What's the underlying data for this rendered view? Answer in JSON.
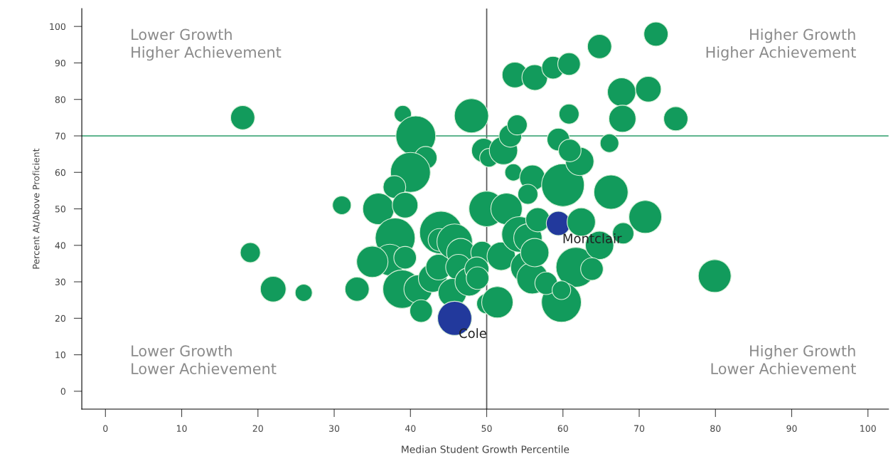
{
  "chart_data": {
    "type": "bubble",
    "xlabel": "Median Student Growth Percentile",
    "ylabel": "Percent At/Above Proficient",
    "x": [
      18,
      19,
      22,
      26,
      31,
      33,
      39,
      40.7,
      42,
      40,
      37.9,
      35.8,
      39.3,
      38,
      37.3,
      35,
      39.3,
      38.9,
      41,
      41.4,
      42.9,
      43.7,
      44,
      43.8,
      45.8,
      46.6,
      46.3,
      45.5,
      45.8,
      48,
      47.7,
      49.4,
      48.7,
      48.8,
      50,
      51.4,
      49.6,
      50.3,
      50,
      52.6,
      51.9,
      52.2,
      53.1,
      54,
      53.7,
      56.3,
      58.7,
      60.8,
      53.5,
      56,
      55.4,
      54.3,
      55.4,
      55.2,
      56,
      56.3,
      56.7,
      59.4,
      60,
      62.2,
      59.4,
      60.9,
      60.8,
      62.4,
      61.7,
      59.8,
      57.8,
      59.8,
      64.8,
      66.3,
      64.8,
      63.8,
      66.1,
      67.7,
      67.8,
      67.9,
      71.2,
      72.2,
      70.8,
      74.8,
      79.9
    ],
    "values": [
      75,
      38,
      28,
      27,
      51,
      28,
      76,
      70,
      64,
      60,
      56,
      50,
      51,
      42,
      36,
      35.5,
      36.6,
      28,
      28,
      22,
      31,
      34,
      43.5,
      41.5,
      41,
      38,
      34,
      27,
      20,
      75.5,
      30,
      38,
      33.5,
      31,
      24,
      24.4,
      66,
      64,
      50,
      50,
      37,
      66,
      70,
      73,
      86.7,
      86,
      88.7,
      89.7,
      60,
      58.5,
      54,
      43,
      42,
      34,
      31,
      38,
      47,
      46,
      56.5,
      63,
      69,
      66,
      76,
      46.4,
      34,
      24.4,
      29.6,
      27.7,
      94.5,
      54.6,
      40,
      33.5,
      68,
      82,
      74.7,
      43.3,
      82.8,
      97.9,
      47.8,
      74.7,
      31.6
    ],
    "sizes": [
      0.32,
      0.22,
      0.36,
      0.16,
      0.19,
      0.32,
      0.16,
      0.87,
      0.28,
      0.87,
      0.28,
      0.54,
      0.36,
      0.87,
      0.54,
      0.54,
      0.28,
      0.81,
      0.44,
      0.28,
      0.44,
      0.36,
      1,
      0.28,
      0.69,
      0.44,
      0.36,
      0.44,
      0.64,
      0.64,
      0.44,
      0.28,
      0.32,
      0.28,
      0.22,
      0.54,
      0.32,
      0.19,
      0.69,
      0.54,
      0.44,
      0.44,
      0.28,
      0.22,
      0.36,
      0.36,
      0.28,
      0.28,
      0.16,
      0.36,
      0.22,
      0.69,
      0.44,
      0.54,
      0.54,
      0.44,
      0.32,
      0.32,
      1,
      0.44,
      0.28,
      0.28,
      0.22,
      0.44,
      0.87,
      0.87,
      0.28,
      0.19,
      0.32,
      0.64,
      0.44,
      0.28,
      0.19,
      0.44,
      0.4,
      0.25,
      0.36,
      0.32,
      0.59,
      0.32,
      0.59
    ],
    "colors": [
      "#129b5c",
      "#129b5c",
      "#129b5c",
      "#129b5c",
      "#129b5c",
      "#129b5c",
      "#129b5c",
      "#129b5c",
      "#129b5c",
      "#129b5c",
      "#129b5c",
      "#129b5c",
      "#129b5c",
      "#129b5c",
      "#129b5c",
      "#129b5c",
      "#129b5c",
      "#129b5c",
      "#129b5c",
      "#129b5c",
      "#129b5c",
      "#129b5c",
      "#129b5c",
      "#129b5c",
      "#129b5c",
      "#129b5c",
      "#129b5c",
      "#129b5c",
      "#22399c",
      "#129b5c",
      "#129b5c",
      "#129b5c",
      "#129b5c",
      "#129b5c",
      "#129b5c",
      "#129b5c",
      "#129b5c",
      "#129b5c",
      "#129b5c",
      "#129b5c",
      "#129b5c",
      "#129b5c",
      "#129b5c",
      "#129b5c",
      "#129b5c",
      "#129b5c",
      "#129b5c",
      "#129b5c",
      "#129b5c",
      "#129b5c",
      "#129b5c",
      "#129b5c",
      "#129b5c",
      "#129b5c",
      "#129b5c",
      "#129b5c",
      "#129b5c",
      "#22399c",
      "#129b5c",
      "#129b5c",
      "#129b5c",
      "#129b5c",
      "#129b5c",
      "#129b5c",
      "#129b5c",
      "#129b5c",
      "#129b5c",
      "#129b5c",
      "#129b5c",
      "#129b5c",
      "#129b5c",
      "#129b5c",
      "#129b5c",
      "#129b5c",
      "#129b5c",
      "#129b5c",
      "#129b5c",
      "#129b5c",
      "#129b5c",
      "#129b5c",
      "#129b5c"
    ],
    "xlim": [
      -3.1,
      102.7
    ],
    "ylim": [
      -4.9,
      104.9
    ],
    "xticks": [
      0,
      10,
      20,
      30,
      40,
      50,
      60,
      70,
      80,
      90,
      100
    ],
    "yticks": [
      0,
      10,
      20,
      30,
      40,
      50,
      60,
      70,
      80,
      90,
      100
    ],
    "grid": false,
    "ref_lines": [
      {
        "axis": "x",
        "value": 50,
        "color": "#555555"
      },
      {
        "axis": "y",
        "value": 70,
        "color": "#2a9d6a"
      }
    ],
    "annotations": [
      "Lower Growth\nHigher Achievement",
      "Higher Growth\nHigher Achievement",
      "Lower Growth\nLower Achievement",
      "Higher Growth\nLower Achievement",
      {
        "text": "Cole",
        "x": 45.8,
        "y": 20
      },
      {
        "text": "Montclair",
        "x": 59.4,
        "y": 46
      }
    ]
  }
}
